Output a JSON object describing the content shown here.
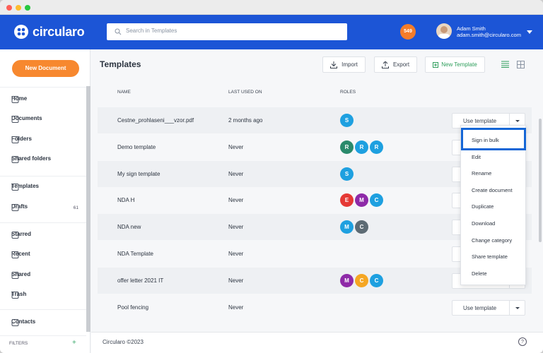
{
  "header": {
    "logo": "circularo",
    "search_placeholder": "Search in Templates",
    "notifications": "549",
    "user_name": "Adam Smith",
    "user_email": "adam.smith@circularo.com"
  },
  "sidebar": {
    "new_button": "New Document",
    "nav": [
      {
        "label": "Home"
      },
      {
        "label": "Documents"
      },
      {
        "label": "Folders"
      },
      {
        "label": "Shared folders"
      },
      {
        "label": "Templates"
      },
      {
        "label": "Drafts",
        "count": "61"
      },
      {
        "label": "Starred"
      },
      {
        "label": "Recent"
      },
      {
        "label": "Shared"
      },
      {
        "label": "Trash"
      },
      {
        "label": "Contacts"
      }
    ],
    "filters": "FILTERS",
    "filters_add": "+"
  },
  "main": {
    "title": "Templates",
    "import": "Import",
    "export": "Export",
    "new_template": "New Template",
    "columns": [
      "NAME",
      "LAST USED ON",
      "ROLES"
    ],
    "use_button": "Use template",
    "rows": [
      {
        "name": "Cestne_prohlaseni___vzor.pdf",
        "last_used": "2 months ago",
        "roles": [
          {
            "letter": "S",
            "color": "#1ea0e0"
          }
        ]
      },
      {
        "name": "Demo template",
        "last_used": "Never",
        "roles": [
          {
            "letter": "R",
            "color": "#2a8a6c"
          },
          {
            "letter": "R",
            "color": "#1ea0e0"
          },
          {
            "letter": "R",
            "color": "#1ea0e0"
          }
        ]
      },
      {
        "name": "My sign template",
        "last_used": "Never",
        "roles": [
          {
            "letter": "S",
            "color": "#1ea0e0"
          }
        ]
      },
      {
        "name": "NDA H",
        "last_used": "Never",
        "roles": [
          {
            "letter": "E",
            "color": "#e53935"
          },
          {
            "letter": "M",
            "color": "#8e2aa8"
          },
          {
            "letter": "C",
            "color": "#1ea0e0"
          }
        ]
      },
      {
        "name": "NDA new",
        "last_used": "Never",
        "roles": [
          {
            "letter": "M",
            "color": "#1ea0e0"
          },
          {
            "letter": "C",
            "color": "#5d6b74"
          }
        ]
      },
      {
        "name": "NDA Template",
        "last_used": "Never",
        "roles": []
      },
      {
        "name": "offer letter 2021 IT",
        "last_used": "Never",
        "roles": [
          {
            "letter": "M",
            "color": "#8e2aa8"
          },
          {
            "letter": "C",
            "color": "#f5a623"
          },
          {
            "letter": "C",
            "color": "#1ea0e0"
          }
        ]
      },
      {
        "name": "Pool fencing",
        "last_used": "Never",
        "roles": []
      }
    ]
  },
  "menu": {
    "items": [
      "Sign in bulk",
      "Edit",
      "Rename",
      "Create document",
      "Duplicate",
      "Download",
      "Change category",
      "Share template",
      "Delete"
    ]
  },
  "footer": {
    "copyright": "Circularo ©2023",
    "help": "?"
  }
}
